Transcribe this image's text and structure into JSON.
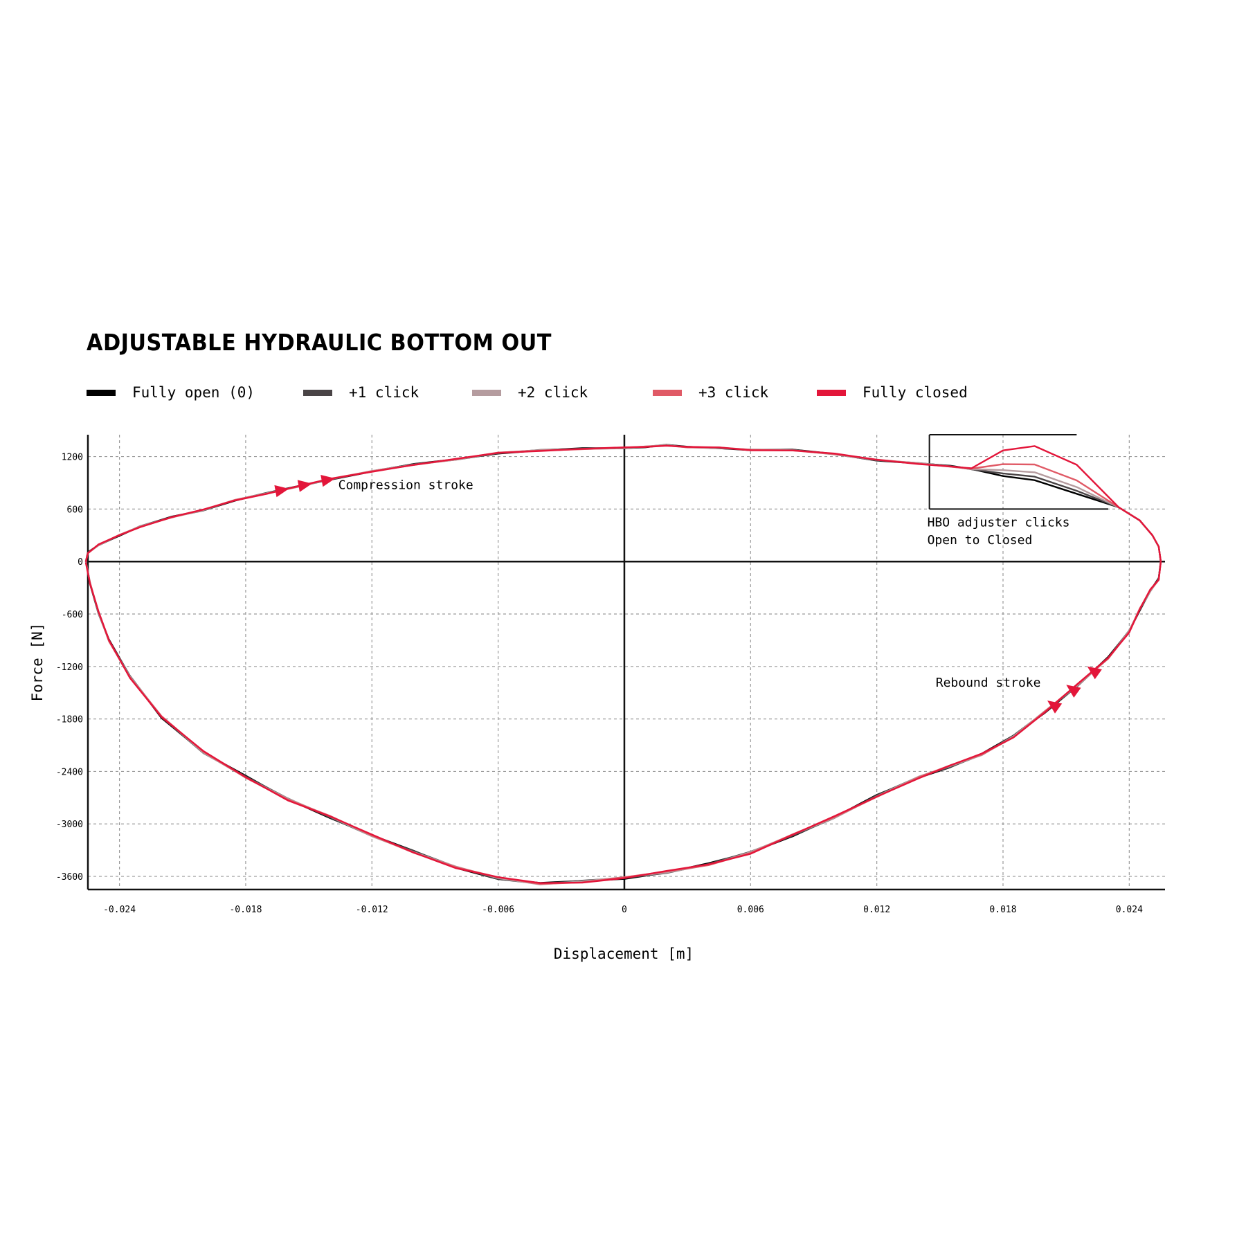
{
  "chart_data": {
    "type": "line",
    "title": "ADJUSTABLE HYDRAULIC BOTTOM OUT",
    "xlabel": "Displacement [m]",
    "ylabel": "Force [N]",
    "xlim": [
      -0.0255,
      0.0257
    ],
    "ylim": [
      -3750,
      1450
    ],
    "x_ticks": [
      -0.024,
      -0.018,
      -0.012,
      -0.006,
      0,
      0.006,
      0.012,
      0.018,
      0.024
    ],
    "x_tick_labels": [
      "-0.024",
      "-0.018",
      "-0.012",
      "-0.006",
      "0",
      "0.006",
      "0.012",
      "0.018",
      "0.024"
    ],
    "y_ticks": [
      1200,
      600,
      0,
      -600,
      -1200,
      -1800,
      -2400,
      -3000,
      -3600
    ],
    "y_tick_labels": [
      "1200",
      "600",
      "0",
      "-600",
      "-1200",
      "-1800",
      "-2400",
      "-3000",
      "-3600"
    ],
    "grid": true,
    "legend_position": "top",
    "series": [
      {
        "name": "Fully open (0)",
        "color": "#000000",
        "bump_x": 0.0195,
        "bump_y": 930
      },
      {
        "name": "+1 click",
        "color": "#4a4446",
        "bump_x": 0.0195,
        "bump_y": 970
      },
      {
        "name": "+2 click",
        "color": "#b59c9f",
        "bump_x": 0.0195,
        "bump_y": 1020
      },
      {
        "name": "+3 click",
        "color": "#e05a66",
        "bump_x": 0.0195,
        "bump_y": 1110
      },
      {
        "name": "Fully closed",
        "color": "#e3163a",
        "bump_x": 0.0195,
        "bump_y": 1320
      }
    ],
    "compression_upper": [
      [
        -0.0256,
        0
      ],
      [
        -0.0255,
        100
      ],
      [
        -0.025,
        190
      ],
      [
        -0.024,
        300
      ],
      [
        -0.023,
        400
      ],
      [
        -0.0215,
        510
      ],
      [
        -0.02,
        590
      ],
      [
        -0.0185,
        700
      ],
      [
        -0.017,
        780
      ],
      [
        -0.0155,
        860
      ],
      [
        -0.014,
        940
      ],
      [
        -0.012,
        1030
      ],
      [
        -0.01,
        1110
      ],
      [
        -0.008,
        1170
      ],
      [
        -0.006,
        1240
      ],
      [
        -0.004,
        1270
      ],
      [
        -0.002,
        1290
      ],
      [
        0.0,
        1300
      ],
      [
        0.001,
        1310
      ],
      [
        0.002,
        1330
      ],
      [
        0.003,
        1310
      ],
      [
        0.0045,
        1300
      ],
      [
        0.006,
        1275
      ],
      [
        0.008,
        1275
      ],
      [
        0.01,
        1230
      ],
      [
        0.012,
        1160
      ],
      [
        0.014,
        1120
      ],
      [
        0.0155,
        1090
      ],
      [
        0.0165,
        1060
      ]
    ],
    "compression_end": [
      [
        0.0235,
        620
      ],
      [
        0.0245,
        470
      ],
      [
        0.0251,
        300
      ],
      [
        0.0254,
        170
      ],
      [
        0.0255,
        0
      ]
    ],
    "rebound_lower": [
      [
        0.0255,
        0
      ],
      [
        0.0254,
        -200
      ],
      [
        0.025,
        -330
      ],
      [
        0.0245,
        -550
      ],
      [
        0.024,
        -800
      ],
      [
        0.023,
        -1100
      ],
      [
        0.0215,
        -1420
      ],
      [
        0.02,
        -1720
      ],
      [
        0.0185,
        -2000
      ],
      [
        0.017,
        -2200
      ],
      [
        0.0155,
        -2340
      ],
      [
        0.014,
        -2470
      ],
      [
        0.012,
        -2680
      ],
      [
        0.01,
        -2920
      ],
      [
        0.008,
        -3130
      ],
      [
        0.006,
        -3330
      ],
      [
        0.004,
        -3460
      ],
      [
        0.002,
        -3550
      ],
      [
        0.0,
        -3620
      ],
      [
        -0.002,
        -3660
      ],
      [
        -0.004,
        -3680
      ],
      [
        -0.006,
        -3620
      ],
      [
        -0.008,
        -3500
      ],
      [
        -0.01,
        -3320
      ],
      [
        -0.012,
        -3130
      ],
      [
        -0.014,
        -2920
      ],
      [
        -0.016,
        -2720
      ],
      [
        -0.018,
        -2460
      ],
      [
        -0.02,
        -2180
      ],
      [
        -0.022,
        -1780
      ],
      [
        -0.0235,
        -1320
      ],
      [
        -0.0245,
        -900
      ],
      [
        -0.025,
        -580
      ],
      [
        -0.0254,
        -250
      ],
      [
        -0.0256,
        0
      ]
    ],
    "annotations": [
      {
        "text": "Compression stroke",
        "x": -0.0136,
        "y": 830
      },
      {
        "text": "HBO adjuster clicks",
        "x": 0.0144,
        "y": 400
      },
      {
        "text": "Open to Closed",
        "x": 0.0144,
        "y": 200
      },
      {
        "text": "Rebound stroke",
        "x": 0.0148,
        "y": -1430
      }
    ],
    "compression_arrows": [
      -0.0163,
      -0.0152,
      -0.0141
    ],
    "rebound_arrows": [
      0.0223,
      0.0213,
      0.0204
    ],
    "hbo_box": {
      "x0": 0.0145,
      "x1": 0.023,
      "y0": 600,
      "y1": 1450
    },
    "hbo_box_top_end": 0.0215
  }
}
